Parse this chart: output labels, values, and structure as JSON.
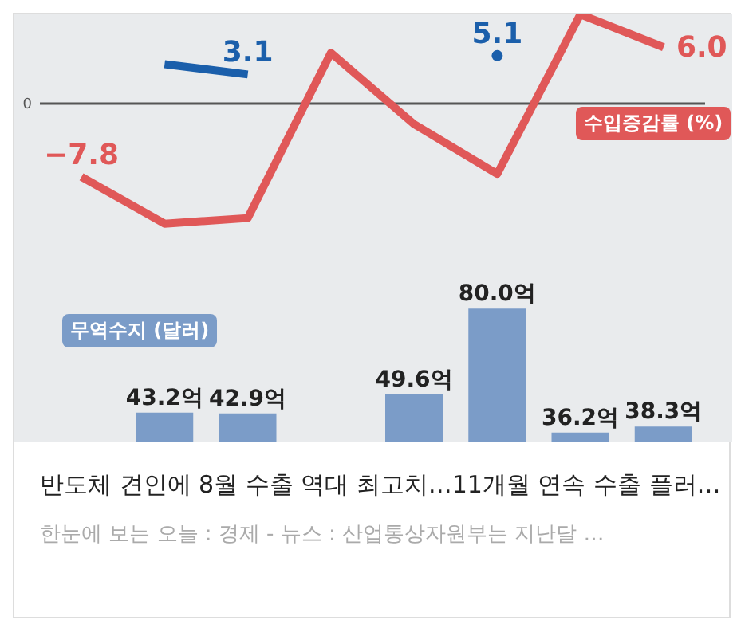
{
  "chart_data": [
    {
      "type": "line",
      "categories": [
        null,
        null,
        null,
        null,
        null,
        null,
        null,
        null
      ],
      "ylim": [
        -36,
        9.5
      ],
      "tick_labels": false,
      "marker": "none",
      "line_style": "solid",
      "ref_lines": [
        {
          "axis": "y",
          "value": 0,
          "label": "0",
          "color": "#555555"
        }
      ],
      "series": [
        {
          "color": "#1b5fab",
          "values": [
            null,
            4.2,
            3.1,
            null,
            null,
            5.1,
            null,
            null
          ],
          "value_labels": [
            null,
            null,
            "3.1",
            null,
            null,
            "5.1",
            null,
            null
          ]
        },
        {
          "name": "수입증감률 (%)",
          "color": "#e05858",
          "values": [
            -7.8,
            -12.8,
            -12.2,
            5.4,
            -2.2,
            -7.5,
            9.5,
            6.0
          ],
          "value_labels": [
            "−7.8",
            null,
            null,
            null,
            null,
            null,
            null,
            "6.0"
          ]
        }
      ]
    },
    {
      "type": "bar",
      "title": "반도체 견인에 8월 수출 역대 최고치…11개월 연속 수출 플러…",
      "annotations": [
        "한눈에 보는 오늘 : 경제 - 뉴스 : 산업통상자원부는 지난달 …"
      ],
      "categories": [
        null,
        null,
        null,
        null,
        null,
        null,
        null,
        null
      ],
      "ylim": [
        33,
        184
      ],
      "tick_labels": false,
      "series": [
        {
          "name": "무역수지 (달러)",
          "color": "#7b9cc8",
          "values": [
            null,
            43.2,
            42.9,
            null,
            49.6,
            80.0,
            36.2,
            38.3
          ],
          "value_labels": [
            null,
            "43.2억",
            "42.9억",
            null,
            "49.6억",
            "80.0억",
            "36.2억",
            "38.3억"
          ]
        }
      ]
    }
  ]
}
